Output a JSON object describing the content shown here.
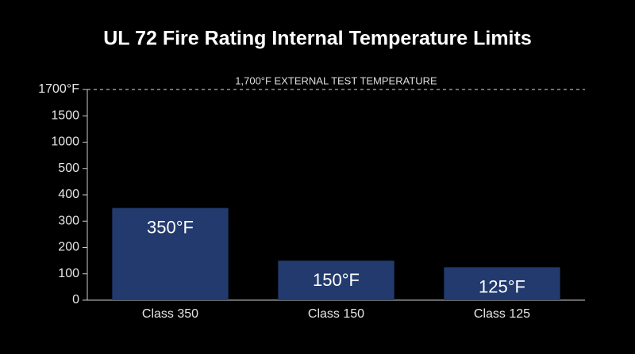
{
  "chart_data": {
    "type": "bar",
    "title": "UL 72 Fire Rating Internal Temperature Limits",
    "categories": [
      "Class 350",
      "Class 150",
      "Class 125"
    ],
    "values": [
      350,
      150,
      125
    ],
    "value_labels": [
      "350°F",
      "150°F",
      "125°F"
    ],
    "color": "#233a6e",
    "ylim": [
      0,
      1700
    ],
    "yticks": [
      0,
      100,
      200,
      300,
      400,
      500,
      1000,
      1500,
      {
        "value": 1700,
        "label": "1700°F"
      }
    ],
    "reference_line": {
      "value": 1700,
      "label": "1,700°F EXTERNAL TEST TEMPERATURE"
    }
  }
}
